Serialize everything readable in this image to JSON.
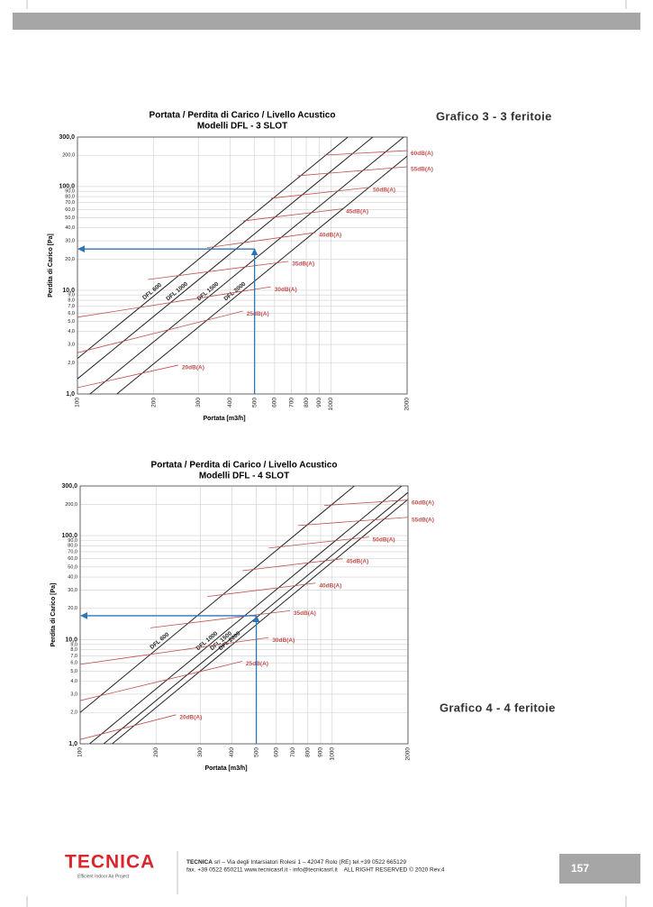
{
  "chart_data": [
    {
      "type": "line",
      "title": "Portata / Perdita di Carico / Livello Acustico",
      "subtitle": "Modelli DFL - 3 SLOT",
      "x_label": "Portata [m3/h]",
      "y_label": "Perdita di Carico [Pa]",
      "log_x": true,
      "log_y": true,
      "grid": true,
      "xlim": [
        100,
        2000
      ],
      "ylim": [
        1,
        300
      ],
      "xticks": [
        100,
        200,
        300,
        400,
        500,
        600,
        700,
        800,
        900,
        1000,
        2000
      ],
      "yticks": [
        {
          "value": 1,
          "label": "1,0"
        },
        {
          "value": 2,
          "label": "2,0"
        },
        {
          "value": 3,
          "label": "3,0"
        },
        {
          "value": 4,
          "label": "4,0"
        },
        {
          "value": 5,
          "label": "5,0"
        },
        {
          "value": 6,
          "label": "6,0"
        },
        {
          "value": 7,
          "label": "7,0"
        },
        {
          "value": 8,
          "label": "8,0"
        },
        {
          "value": 9,
          "label": "9,0"
        },
        {
          "value": 10,
          "label": "10,0"
        },
        {
          "value": 20,
          "label": "20,0"
        },
        {
          "value": 30,
          "label": "30,0"
        },
        {
          "value": 40,
          "label": "40,0"
        },
        {
          "value": 50,
          "label": "50,0"
        },
        {
          "value": 60,
          "label": "60,0"
        },
        {
          "value": 70,
          "label": "70,0"
        },
        {
          "value": 80,
          "label": "80,0"
        },
        {
          "value": 90,
          "label": "90,0"
        },
        {
          "value": 100,
          "label": "100,0"
        },
        {
          "value": 200,
          "label": "200,0"
        },
        {
          "value": 300,
          "label": "300,0"
        }
      ],
      "series": [
        {
          "name": "DFL 600",
          "color": "#222222",
          "x": [
            100,
            1168
          ],
          "values": [
            2.2,
            300
          ]
        },
        {
          "name": "DFL 1000",
          "color": "#222222",
          "x": [
            100,
            1464
          ],
          "values": [
            1.4,
            300
          ]
        },
        {
          "name": "DFL 1500",
          "color": "#222222",
          "x": [
            112,
            1940
          ],
          "values": [
            1,
            300
          ]
        },
        {
          "name": "DFL 2000",
          "color": "#222222",
          "x": [
            143,
            2000
          ],
          "values": [
            1,
            196
          ]
        },
        {
          "name": "20dB(A)",
          "color": "#c0504d",
          "x": [
            100,
            250
          ],
          "values": [
            1.15,
            1.9
          ]
        },
        {
          "name": "25dB(A)",
          "color": "#c0504d",
          "x": [
            100,
            450
          ],
          "values": [
            2.5,
            6.3
          ]
        },
        {
          "name": "30dB(A)",
          "color": "#c0504d",
          "x": [
            100,
            580
          ],
          "values": [
            5.5,
            10.8
          ]
        },
        {
          "name": "35dB(A)",
          "color": "#c0504d",
          "x": [
            190,
            680
          ],
          "values": [
            12.7,
            19
          ]
        },
        {
          "name": "40dB(A)",
          "color": "#c0504d",
          "x": [
            325,
            870
          ],
          "values": [
            25.7,
            36
          ]
        },
        {
          "name": "45dB(A)",
          "color": "#c0504d",
          "x": [
            450,
            1110
          ],
          "values": [
            46.6,
            61
          ]
        },
        {
          "name": "50dB(A)",
          "color": "#c0504d",
          "x": [
            580,
            1420
          ],
          "values": [
            77,
            98
          ]
        },
        {
          "name": "55dB(A)",
          "color": "#c0504d",
          "x": [
            740,
            2000
          ],
          "values": [
            127,
            155
          ]
        },
        {
          "name": "60dB(A)",
          "color": "#c0504d",
          "x": [
            945,
            2000
          ],
          "values": [
            201,
            222
          ]
        }
      ],
      "marker": {
        "x": 500,
        "y": 25,
        "color": "#2e75b6"
      }
    },
    {
      "type": "line",
      "title": "Portata / Perdita di Carico / Livello Acustico",
      "subtitle": "Modelli DFL - 4 SLOT",
      "x_label": "Portata [m3/h]",
      "y_label": "Perdita di Carico [Pa]",
      "log_x": true,
      "log_y": true,
      "grid": true,
      "xlim": [
        100,
        2000
      ],
      "ylim": [
        1,
        300
      ],
      "xticks": [
        100,
        200,
        300,
        400,
        500,
        600,
        700,
        800,
        900,
        1000,
        2000
      ],
      "yticks": [
        {
          "value": 1,
          "label": "1,0"
        },
        {
          "value": 2,
          "label": "2,0"
        },
        {
          "value": 3,
          "label": "3,0"
        },
        {
          "value": 4,
          "label": "4,0"
        },
        {
          "value": 5,
          "label": "5,0"
        },
        {
          "value": 6,
          "label": "6,0"
        },
        {
          "value": 7,
          "label": "7,0"
        },
        {
          "value": 8,
          "label": "8,0"
        },
        {
          "value": 9,
          "label": "9,0"
        },
        {
          "value": 10,
          "label": "10,0"
        },
        {
          "value": 20,
          "label": "20,0"
        },
        {
          "value": 30,
          "label": "30,0"
        },
        {
          "value": 40,
          "label": "40,0"
        },
        {
          "value": 50,
          "label": "50,0"
        },
        {
          "value": 60,
          "label": "60,0"
        },
        {
          "value": 70,
          "label": "70,0"
        },
        {
          "value": 80,
          "label": "80,0"
        },
        {
          "value": 90,
          "label": "90,0"
        },
        {
          "value": 100,
          "label": "100,0"
        },
        {
          "value": 200,
          "label": "200,0"
        },
        {
          "value": 300,
          "label": "300,0"
        }
      ],
      "series": [
        {
          "name": "DFL 600",
          "color": "#222222",
          "x": [
            100,
            1225
          ],
          "values": [
            2.0,
            300
          ]
        },
        {
          "name": "DFL 1000",
          "color": "#222222",
          "x": [
            109,
            1888
          ],
          "values": [
            1,
            300
          ]
        },
        {
          "name": "DFL 1500",
          "color": "#222222",
          "x": [
            124,
            2000
          ],
          "values": [
            1,
            260
          ]
        },
        {
          "name": "DFL 2000",
          "color": "#222222",
          "x": [
            134,
            2000
          ],
          "values": [
            1,
            223
          ]
        },
        {
          "name": "20dB(A)",
          "color": "#c0504d",
          "x": [
            100,
            240
          ],
          "values": [
            1.1,
            1.9
          ]
        },
        {
          "name": "25dB(A)",
          "color": "#c0504d",
          "x": [
            100,
            440
          ],
          "values": [
            2.6,
            6.2
          ]
        },
        {
          "name": "30dB(A)",
          "color": "#c0504d",
          "x": [
            100,
            560
          ],
          "values": [
            5.8,
            10.5
          ]
        },
        {
          "name": "35dB(A)",
          "color": "#c0504d",
          "x": [
            190,
            680
          ],
          "values": [
            13,
            19
          ]
        },
        {
          "name": "40dB(A)",
          "color": "#c0504d",
          "x": [
            320,
            860
          ],
          "values": [
            26,
            35
          ]
        },
        {
          "name": "45dB(A)",
          "color": "#c0504d",
          "x": [
            440,
            1100
          ],
          "values": [
            46,
            60
          ]
        },
        {
          "name": "50dB(A)",
          "color": "#c0504d",
          "x": [
            560,
            1400
          ],
          "values": [
            76,
            97
          ]
        },
        {
          "name": "55dB(A)",
          "color": "#c0504d",
          "x": [
            730,
            2000
          ],
          "values": [
            125,
            150
          ]
        },
        {
          "name": "60dB(A)",
          "color": "#c0504d",
          "x": [
            930,
            2000
          ],
          "values": [
            195,
            220
          ]
        }
      ],
      "marker": {
        "x": 500,
        "y": 17,
        "color": "#2e75b6"
      }
    }
  ],
  "captions": [
    "Grafico 3 - 3 feritoie",
    "Grafico 4 - 4 feritoie"
  ],
  "footer": {
    "logo": "TECNICA",
    "tagline": "Efficient Indoor Air Project",
    "company": "TECNICA",
    "line1": "srl – Via degli Intarsiatori Rolesi 1 – 42047 Rolo (RE) tel.+39 0522 665129",
    "line2": "fax. +39 0522 650211 www.tecnicasrl.it - info@tecnicasrl.it    ALL RIGHT RESERVED © 2020 Rev.4",
    "page_number": "157"
  }
}
